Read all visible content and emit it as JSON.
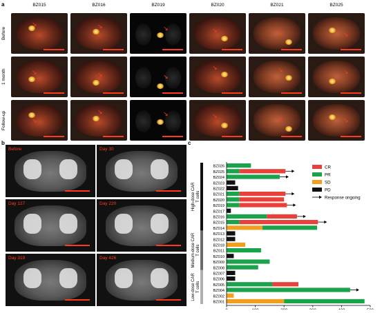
{
  "panel_a": {
    "letter": "a",
    "columns": [
      "BZ015",
      "BZ016",
      "BZ019",
      "BZ020",
      "BZ021",
      "BZ025"
    ],
    "rows": [
      "Before",
      "1 month",
      "Follow-up"
    ]
  },
  "panel_b": {
    "letter": "b",
    "images": [
      "Before",
      "Day 30",
      "Day 127",
      "Day 220",
      "Day 319",
      "Day 426"
    ]
  },
  "panel_c": {
    "letter": "c"
  },
  "chart_data": {
    "type": "bar",
    "orientation": "horizontal",
    "xlabel": "Days after CAR T cell infusion",
    "xlim": [
      0,
      500
    ],
    "xticks": [
      0,
      100,
      200,
      300,
      400,
      500
    ],
    "legend": {
      "placement": "top-right",
      "entries": [
        {
          "label": "CR",
          "color": "#e8403a"
        },
        {
          "label": "PR",
          "color": "#1aa34a"
        },
        {
          "label": "SD",
          "color": "#f0a020"
        },
        {
          "label": "PD",
          "color": "#111111"
        },
        {
          "label": "Response ongoing",
          "symbol": "arrow"
        }
      ]
    },
    "groups": [
      {
        "label": "High-dose CAR T cells",
        "from": "BZ026",
        "to": "BZ014",
        "color": "#111111"
      },
      {
        "label": "Medium-dose CAR T cells",
        "from": "BZ013",
        "to": "BZ008",
        "color": "#6a6a6a"
      },
      {
        "label": "Low-dose CAR T cells",
        "from": "BZ007",
        "to": "BZ001",
        "color": "#b0b0b0"
      }
    ],
    "patients": [
      {
        "id": "BZ026",
        "segments": [
          {
            "status": "PR",
            "start": 0,
            "end": 85
          }
        ],
        "ongoing": false
      },
      {
        "id": "BZ025",
        "segments": [
          {
            "status": "PR",
            "start": 0,
            "end": 45
          },
          {
            "status": "CR",
            "start": 45,
            "end": 205
          }
        ],
        "ongoing": true
      },
      {
        "id": "BZ024",
        "segments": [
          {
            "status": "PR",
            "start": 0,
            "end": 185
          }
        ],
        "ongoing": true
      },
      {
        "id": "BZ023",
        "segments": [
          {
            "status": "PD",
            "start": 0,
            "end": 30
          }
        ],
        "ongoing": false
      },
      {
        "id": "BZ022",
        "segments": [
          {
            "status": "PD",
            "start": 0,
            "end": 40
          }
        ],
        "ongoing": false
      },
      {
        "id": "BZ021",
        "segments": [
          {
            "status": "PR",
            "start": 0,
            "end": 45
          },
          {
            "status": "CR",
            "start": 45,
            "end": 205
          }
        ],
        "ongoing": true
      },
      {
        "id": "BZ020",
        "segments": [
          {
            "status": "PR",
            "start": 0,
            "end": 45
          },
          {
            "status": "CR",
            "start": 45,
            "end": 200
          }
        ],
        "ongoing": false
      },
      {
        "id": "BZ019",
        "segments": [
          {
            "status": "PR",
            "start": 0,
            "end": 45
          },
          {
            "status": "CR",
            "start": 45,
            "end": 210
          }
        ],
        "ongoing": true
      },
      {
        "id": "BZ017",
        "segments": [
          {
            "status": "PD",
            "start": 0,
            "end": 15
          }
        ],
        "ongoing": false
      },
      {
        "id": "BZ016",
        "segments": [
          {
            "status": "PR",
            "start": 0,
            "end": 140
          },
          {
            "status": "CR",
            "start": 140,
            "end": 245
          }
        ],
        "ongoing": true
      },
      {
        "id": "BZ015",
        "segments": [
          {
            "status": "PR",
            "start": 0,
            "end": 45
          },
          {
            "status": "CR",
            "start": 45,
            "end": 318
          }
        ],
        "ongoing": true
      },
      {
        "id": "BZ014",
        "segments": [
          {
            "status": "SD",
            "start": 0,
            "end": 125
          },
          {
            "status": "PR",
            "start": 125,
            "end": 315
          }
        ],
        "ongoing": false
      },
      {
        "id": "BZ013",
        "segments": [
          {
            "status": "PD",
            "start": 0,
            "end": 30
          }
        ],
        "ongoing": false
      },
      {
        "id": "BZ012",
        "segments": [
          {
            "status": "PD",
            "start": 0,
            "end": 30
          }
        ],
        "ongoing": false
      },
      {
        "id": "BZ018",
        "segments": [
          {
            "status": "SD",
            "start": 0,
            "end": 65
          }
        ],
        "ongoing": false
      },
      {
        "id": "BZ011",
        "segments": [
          {
            "status": "PR",
            "start": 0,
            "end": 120
          }
        ],
        "ongoing": false
      },
      {
        "id": "BZ010",
        "segments": [
          {
            "status": "PD",
            "start": 0,
            "end": 25
          }
        ],
        "ongoing": false
      },
      {
        "id": "BZ009",
        "segments": [
          {
            "status": "PR",
            "start": 0,
            "end": 150
          }
        ],
        "ongoing": false
      },
      {
        "id": "BZ008",
        "segments": [
          {
            "status": "PR",
            "start": 0,
            "end": 110
          }
        ],
        "ongoing": false
      },
      {
        "id": "BZ007",
        "segments": [
          {
            "status": "PD",
            "start": 0,
            "end": 30
          }
        ],
        "ongoing": false
      },
      {
        "id": "BZ006",
        "segments": [
          {
            "status": "PD",
            "start": 0,
            "end": 30
          }
        ],
        "ongoing": false
      },
      {
        "id": "BZ005",
        "segments": [
          {
            "status": "PR",
            "start": 0,
            "end": 160
          },
          {
            "status": "CR",
            "start": 160,
            "end": 250
          }
        ],
        "ongoing": false
      },
      {
        "id": "BZ004",
        "segments": [
          {
            "status": "PR",
            "start": 0,
            "end": 430
          }
        ],
        "ongoing": true
      },
      {
        "id": "BZ002",
        "segments": [
          {
            "status": "SD",
            "start": 0,
            "end": 25
          }
        ],
        "ongoing": false
      },
      {
        "id": "BZ001",
        "segments": [
          {
            "status": "SD",
            "start": 0,
            "end": 200
          },
          {
            "status": "PR",
            "start": 200,
            "end": 480
          }
        ],
        "ongoing": false
      }
    ]
  }
}
